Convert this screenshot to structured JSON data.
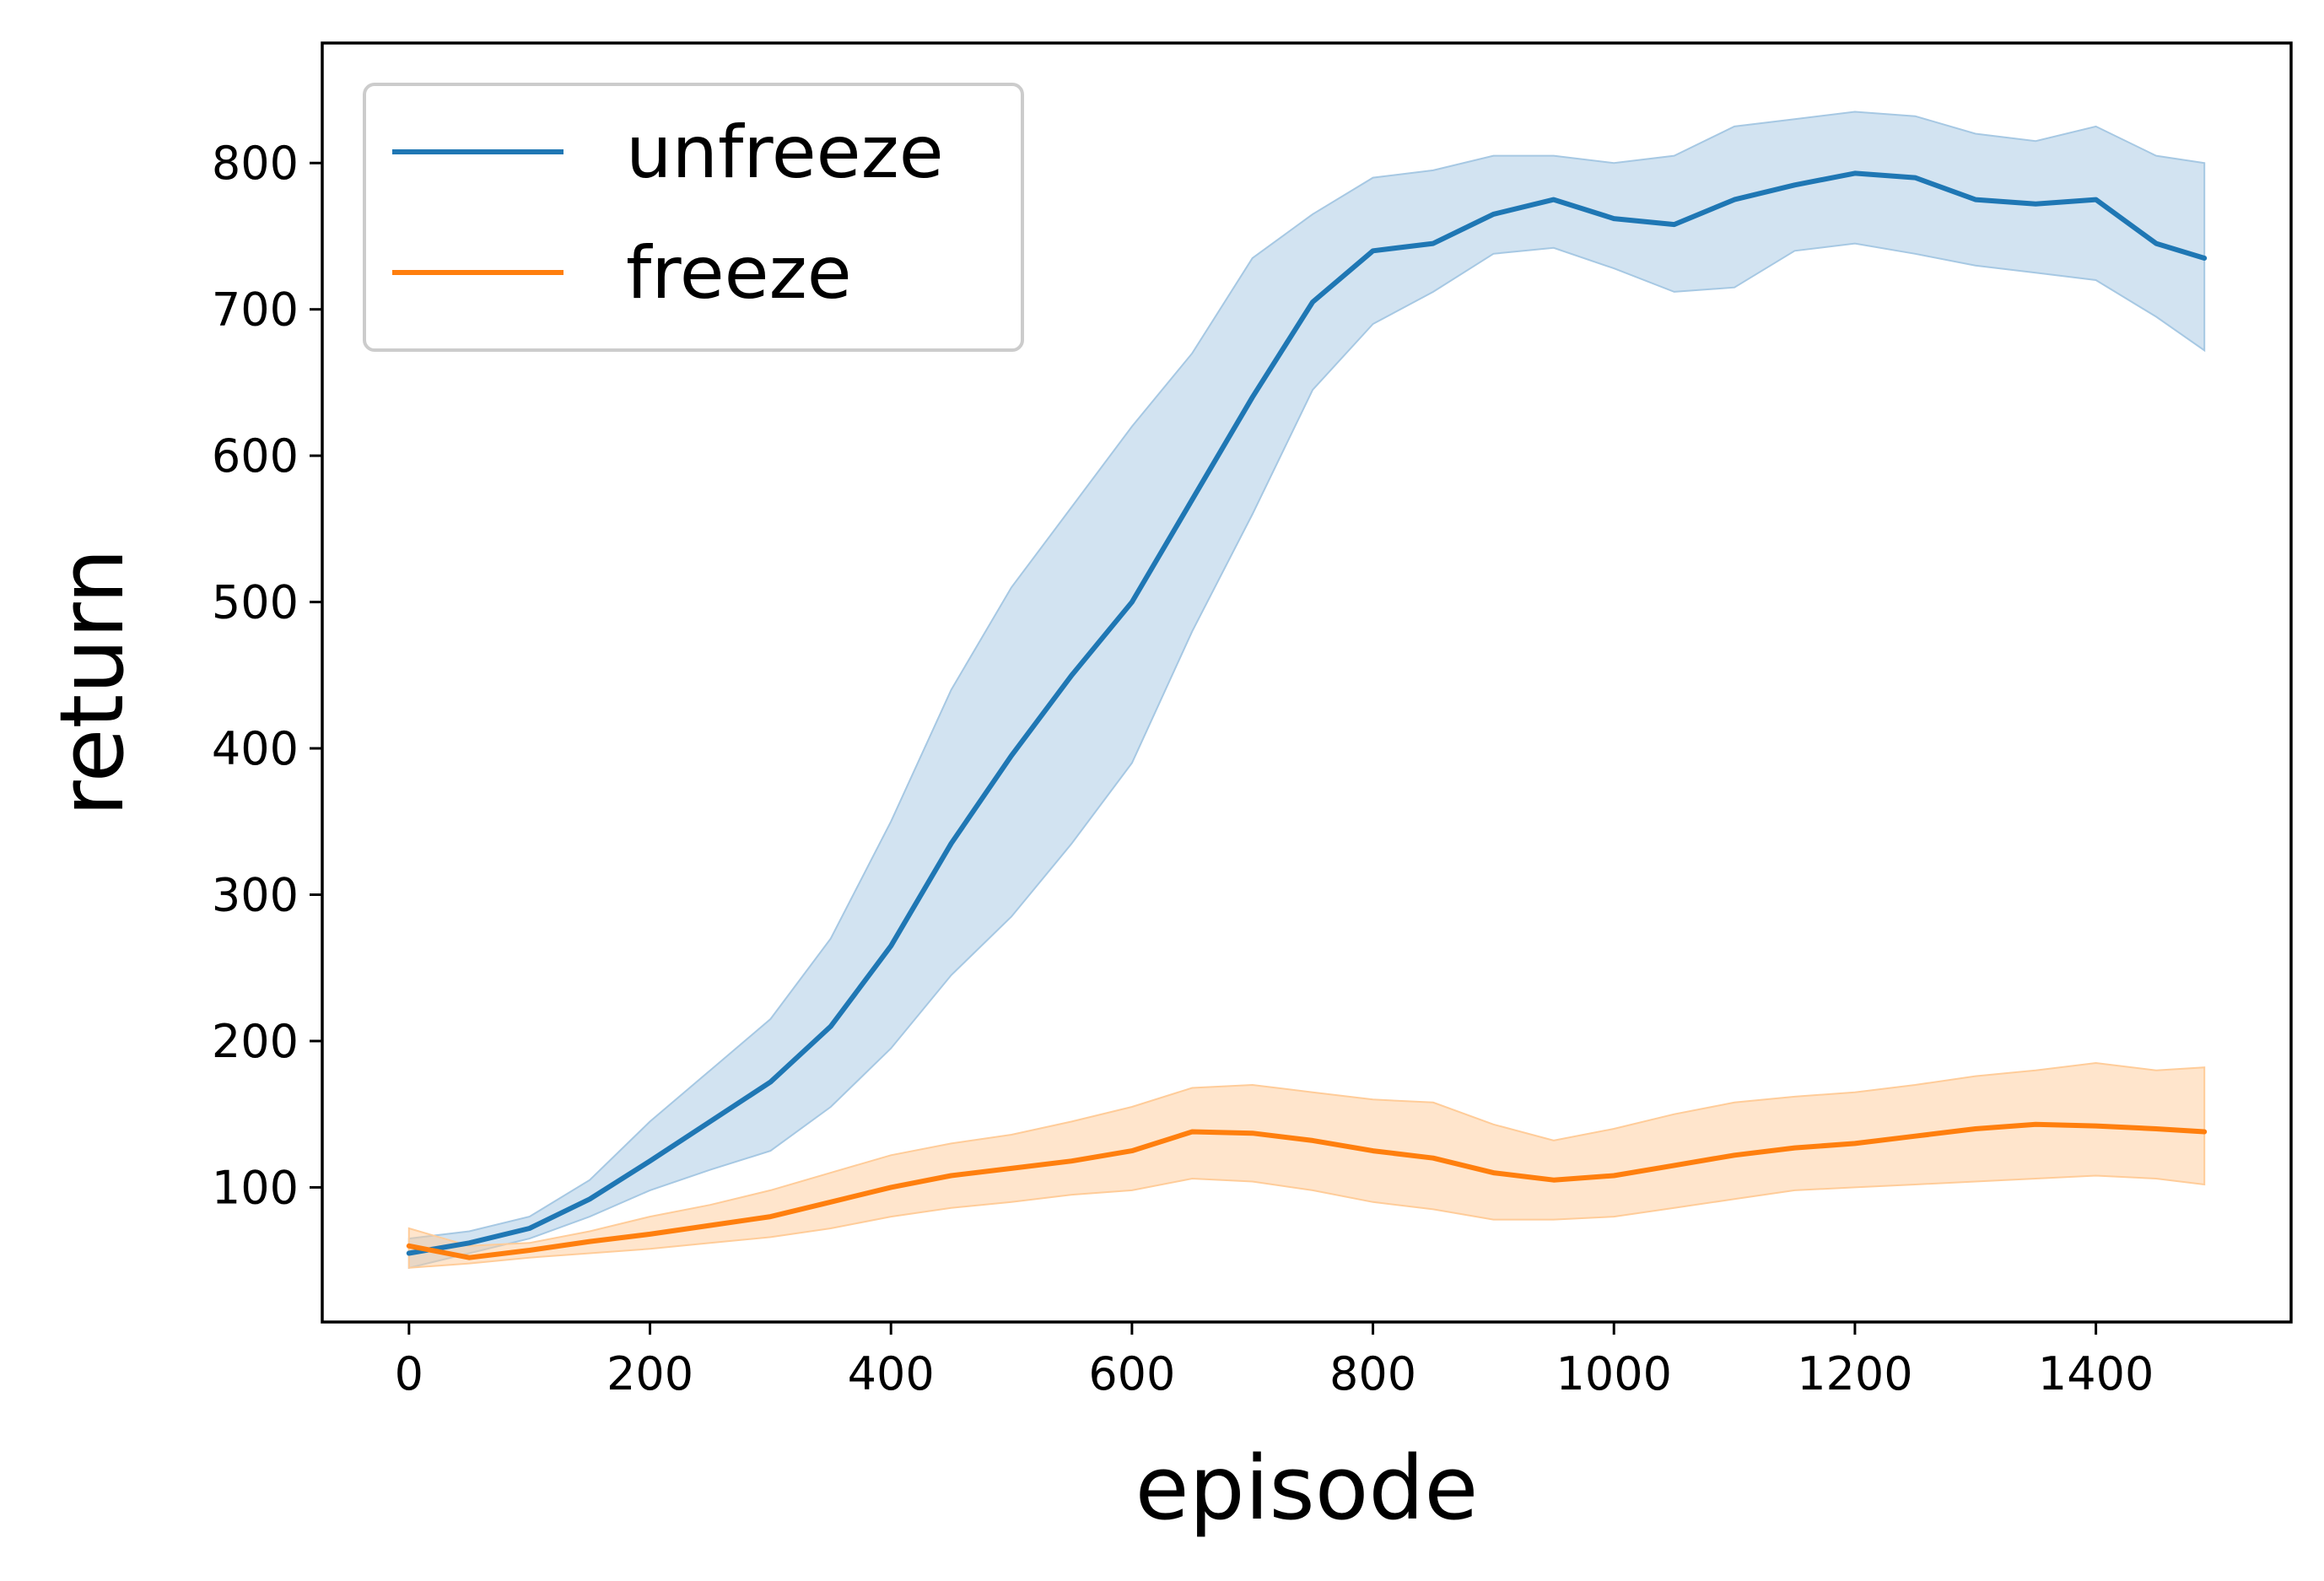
{
  "chart_data": {
    "type": "line",
    "title": "",
    "xlabel": "episode",
    "ylabel": "return",
    "xlim": [
      -72,
      1562
    ],
    "ylim": [
      8,
      882
    ],
    "xticks": [
      0,
      200,
      400,
      600,
      800,
      1000,
      1200,
      1400
    ],
    "yticks": [
      100,
      200,
      300,
      400,
      500,
      600,
      700,
      800
    ],
    "xtick_labels": [
      "0",
      "200",
      "400",
      "600",
      "800",
      "1000",
      "1200",
      "1400"
    ],
    "ytick_labels": [
      "100",
      "200",
      "300",
      "400",
      "500",
      "600",
      "700",
      "800"
    ],
    "grid": false,
    "legend_position": "upper-left",
    "x": [
      0,
      50,
      100,
      150,
      200,
      250,
      300,
      350,
      400,
      450,
      500,
      550,
      600,
      650,
      700,
      750,
      800,
      850,
      900,
      950,
      1000,
      1050,
      1100,
      1150,
      1200,
      1250,
      1300,
      1350,
      1400,
      1450,
      1490
    ],
    "series": [
      {
        "name": "unfreeze",
        "color": "#1f77b4",
        "band_color": "#a6c8e3",
        "values": [
          55,
          62,
          72,
          92,
          118,
          145,
          172,
          210,
          265,
          335,
          395,
          450,
          500,
          570,
          640,
          705,
          740,
          745,
          765,
          775,
          762,
          758,
          775,
          785,
          793,
          790,
          775,
          772,
          775,
          745,
          735
        ],
        "lower": [
          45,
          55,
          65,
          80,
          98,
          112,
          125,
          155,
          195,
          245,
          285,
          335,
          390,
          480,
          560,
          645,
          690,
          712,
          738,
          742,
          728,
          712,
          715,
          740,
          745,
          738,
          730,
          725,
          720,
          695,
          672
        ],
        "upper": [
          65,
          70,
          80,
          105,
          145,
          180,
          215,
          270,
          350,
          440,
          510,
          565,
          620,
          670,
          735,
          765,
          790,
          795,
          805,
          805,
          800,
          805,
          825,
          830,
          835,
          832,
          820,
          815,
          825,
          805,
          800
        ]
      },
      {
        "name": "freeze",
        "color": "#ff7f0e",
        "band_color": "#ffcc99",
        "values": [
          60,
          52,
          57,
          63,
          68,
          74,
          80,
          90,
          100,
          108,
          113,
          118,
          125,
          138,
          137,
          132,
          125,
          120,
          110,
          105,
          108,
          115,
          122,
          127,
          130,
          135,
          140,
          143,
          142,
          140,
          138
        ],
        "lower": [
          45,
          48,
          52,
          55,
          58,
          62,
          66,
          72,
          80,
          86,
          90,
          95,
          98,
          106,
          104,
          98,
          90,
          85,
          78,
          78,
          80,
          86,
          92,
          98,
          100,
          102,
          104,
          106,
          108,
          106,
          102
        ],
        "upper": [
          72,
          60,
          62,
          70,
          80,
          88,
          98,
          110,
          122,
          130,
          136,
          145,
          155,
          168,
          170,
          165,
          160,
          158,
          143,
          132,
          140,
          150,
          158,
          162,
          165,
          170,
          176,
          180,
          185,
          180,
          182
        ]
      }
    ]
  }
}
